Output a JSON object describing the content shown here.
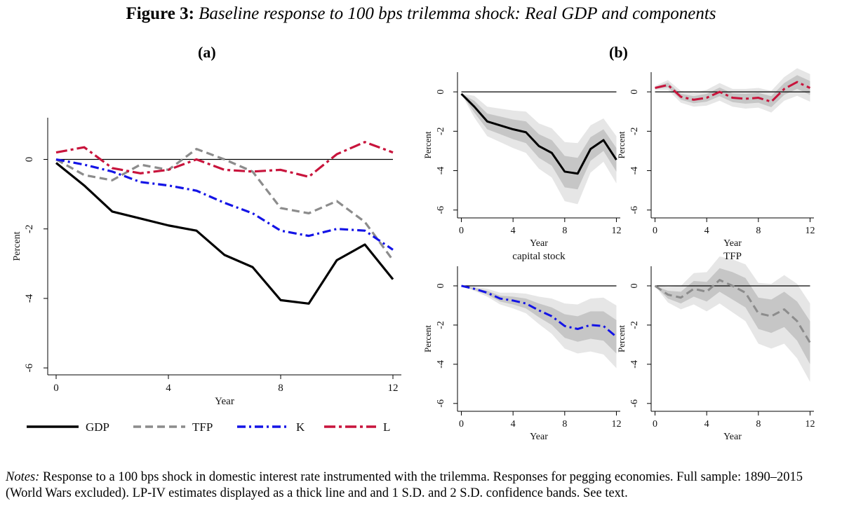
{
  "figure": {
    "label": "Figure 3:",
    "caption": "Baseline response to 100 bps trilemma shock: Real GDP and components"
  },
  "panels": {
    "a": "(a)",
    "b": "(b)"
  },
  "notes": {
    "label": "Notes:",
    "text": "Response to a 100 bps shock in domestic interest rate instrumented with the trilemma. Responses for pegging economies. Full sample: 1890–2015 (World Wars excluded). LP-IV estimates displayed as a thick line and and 1 S.D. and 2 S.D. confidence bands. See text."
  },
  "colors": {
    "GDP": "#000000",
    "TFP": "#8c8c8c",
    "K": "#1414e6",
    "L": "#c8143c",
    "band_inner": "#c6c6c6",
    "band_outer": "#e6e6e6"
  },
  "chart_data": [
    {
      "id": "panel-a",
      "type": "line",
      "panel": "(a)",
      "xlabel": "Year",
      "ylabel": "Percent",
      "x": [
        0,
        1,
        2,
        3,
        4,
        5,
        6,
        7,
        8,
        9,
        10,
        11,
        12
      ],
      "xticks": [
        0,
        4,
        8,
        12
      ],
      "yticks": [
        0,
        -2,
        -4,
        -6
      ],
      "ylim": [
        -6.2,
        1.2
      ],
      "xlim": [
        -0.3,
        12.3
      ],
      "legend": [
        "GDP",
        "TFP",
        "K",
        "L"
      ],
      "legend_position": "bottom",
      "series": [
        {
          "name": "GDP",
          "values": [
            -0.1,
            -0.75,
            -1.5,
            -1.7,
            -1.9,
            -2.05,
            -2.75,
            -3.1,
            -4.05,
            -4.15,
            -2.9,
            -2.45,
            -3.45
          ]
        },
        {
          "name": "TFP",
          "values": [
            0,
            -0.45,
            -0.6,
            -0.15,
            -0.3,
            0.3,
            0.0,
            -0.35,
            -1.4,
            -1.55,
            -1.2,
            -1.8,
            -2.9
          ]
        },
        {
          "name": "K",
          "values": [
            0,
            -0.15,
            -0.35,
            -0.65,
            -0.75,
            -0.9,
            -1.25,
            -1.55,
            -2.05,
            -2.2,
            -2.0,
            -2.05,
            -2.6
          ]
        },
        {
          "name": "L",
          "values": [
            0.2,
            0.35,
            -0.25,
            -0.4,
            -0.3,
            0.0,
            -0.3,
            -0.35,
            -0.3,
            -0.5,
            0.15,
            0.5,
            0.2
          ]
        }
      ]
    },
    {
      "id": "panel-b-gdp",
      "type": "line",
      "panel": "(b)",
      "title": "",
      "xlabel": "Year",
      "ylabel": "Percent",
      "series_name": "GDP",
      "x": [
        0,
        1,
        2,
        3,
        4,
        5,
        6,
        7,
        8,
        9,
        10,
        11,
        12
      ],
      "xticks": [
        0,
        4,
        8,
        12
      ],
      "yticks": [
        0,
        -2,
        -4,
        -6
      ],
      "ylim": [
        -6.4,
        1.0
      ],
      "values": [
        -0.1,
        -0.75,
        -1.5,
        -1.7,
        -1.9,
        -2.05,
        -2.75,
        -3.1,
        -4.05,
        -4.15,
        -2.9,
        -2.45,
        -3.45
      ],
      "band1": [
        0.0,
        0.3,
        0.4,
        0.45,
        0.5,
        0.55,
        0.6,
        0.65,
        0.8,
        0.8,
        0.6,
        0.55,
        0.6
      ],
      "band2": [
        0.0,
        0.55,
        0.75,
        0.85,
        0.95,
        1.05,
        1.15,
        1.25,
        1.5,
        1.55,
        1.2,
        1.1,
        1.2
      ]
    },
    {
      "id": "panel-b-labor",
      "type": "line",
      "panel": "(b)",
      "title": "",
      "xlabel": "Year",
      "ylabel": "Percent",
      "series_name": "L",
      "x": [
        0,
        1,
        2,
        3,
        4,
        5,
        6,
        7,
        8,
        9,
        10,
        11,
        12
      ],
      "xticks": [
        0,
        4,
        8,
        12
      ],
      "yticks": [
        0,
        -2,
        -4,
        -6
      ],
      "ylim": [
        -6.4,
        1.0
      ],
      "values": [
        0.2,
        0.35,
        -0.25,
        -0.4,
        -0.3,
        0.0,
        -0.3,
        -0.35,
        -0.3,
        -0.5,
        0.15,
        0.5,
        0.2
      ],
      "band1": [
        0.05,
        0.12,
        0.15,
        0.18,
        0.2,
        0.22,
        0.22,
        0.25,
        0.25,
        0.28,
        0.3,
        0.35,
        0.35
      ],
      "band2": [
        0.1,
        0.25,
        0.3,
        0.35,
        0.4,
        0.45,
        0.45,
        0.5,
        0.5,
        0.55,
        0.6,
        0.7,
        0.7
      ]
    },
    {
      "id": "panel-b-capital",
      "type": "line",
      "panel": "(b)",
      "title": "capital stock",
      "xlabel": "Year",
      "ylabel": "Percent",
      "series_name": "K",
      "x": [
        0,
        1,
        2,
        3,
        4,
        5,
        6,
        7,
        8,
        9,
        10,
        11,
        12
      ],
      "xticks": [
        0,
        4,
        8,
        12
      ],
      "yticks": [
        0,
        -2,
        -4,
        -6
      ],
      "ylim": [
        -6.4,
        1.0
      ],
      "values": [
        0,
        -0.15,
        -0.35,
        -0.65,
        -0.75,
        -0.9,
        -1.25,
        -1.55,
        -2.05,
        -2.2,
        -2.0,
        -2.05,
        -2.6
      ],
      "band1": [
        0.0,
        0.05,
        0.1,
        0.15,
        0.2,
        0.25,
        0.35,
        0.45,
        0.6,
        0.65,
        0.7,
        0.75,
        0.85
      ],
      "band2": [
        0.0,
        0.1,
        0.2,
        0.3,
        0.4,
        0.5,
        0.7,
        0.9,
        1.15,
        1.25,
        1.35,
        1.45,
        1.6
      ]
    },
    {
      "id": "panel-b-tfp",
      "type": "line",
      "panel": "(b)",
      "title": "TFP",
      "xlabel": "Year",
      "ylabel": "Percent",
      "series_name": "TFP",
      "x": [
        0,
        1,
        2,
        3,
        4,
        5,
        6,
        7,
        8,
        9,
        10,
        11,
        12
      ],
      "xticks": [
        0,
        4,
        8,
        12
      ],
      "yticks": [
        0,
        -2,
        -4,
        -6
      ],
      "ylim": [
        -6.4,
        1.0
      ],
      "values": [
        0,
        -0.45,
        -0.6,
        -0.15,
        -0.3,
        0.3,
        0.0,
        -0.35,
        -1.4,
        -1.55,
        -1.2,
        -1.8,
        -2.9
      ],
      "band1": [
        0.0,
        0.2,
        0.3,
        0.4,
        0.5,
        0.6,
        0.7,
        0.75,
        0.8,
        0.85,
        0.9,
        1.0,
        1.1
      ],
      "band2": [
        0.0,
        0.4,
        0.6,
        0.8,
        1.0,
        1.2,
        1.35,
        1.45,
        1.55,
        1.65,
        1.75,
        1.9,
        2.0
      ]
    }
  ]
}
